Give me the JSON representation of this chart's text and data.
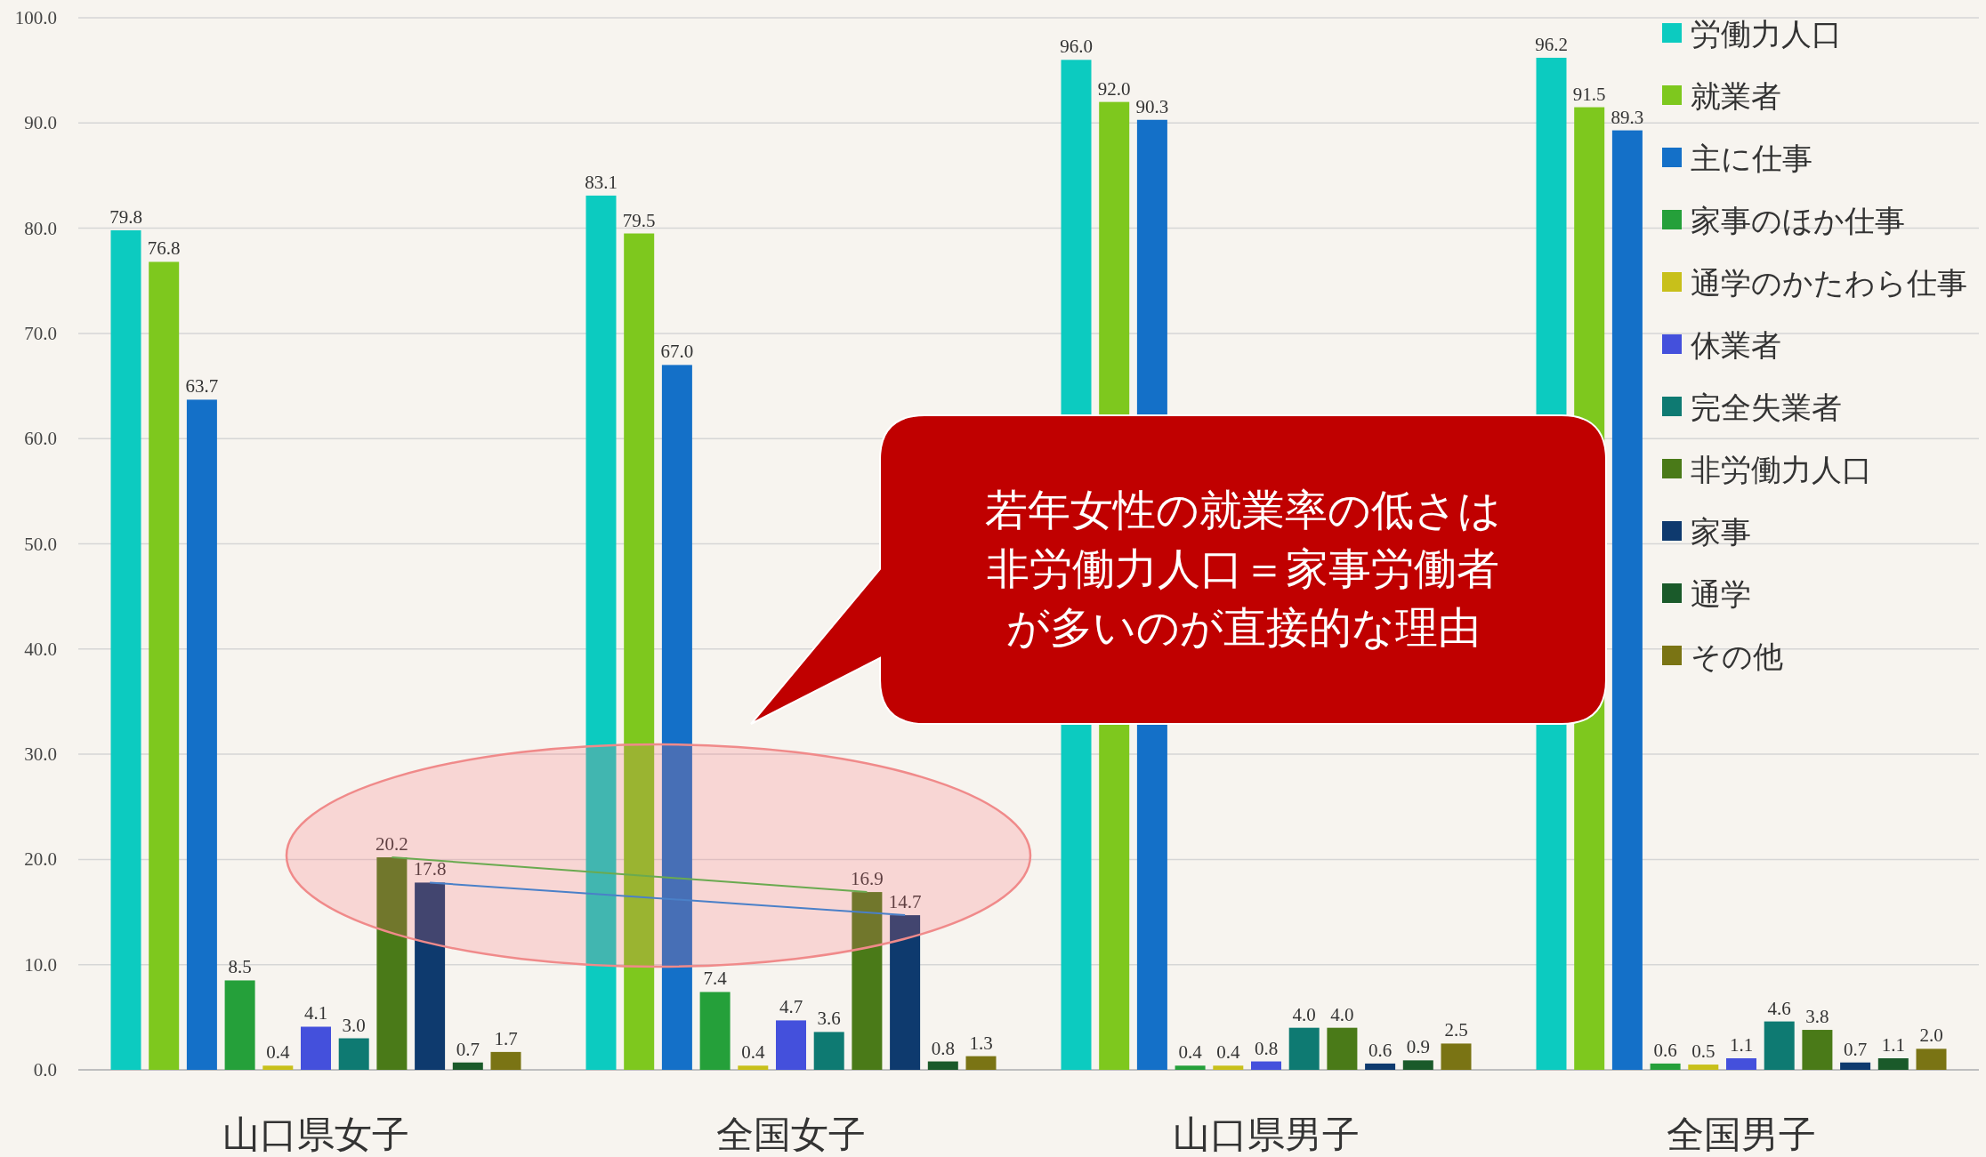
{
  "chart_data": {
    "type": "bar",
    "categories": [
      "山口県女子",
      "全国女子",
      "山口県男子",
      "全国男子"
    ],
    "series": [
      {
        "name": "労働力人口",
        "color": "#0ccbc0",
        "values": [
          79.8,
          83.1,
          96,
          96.2
        ],
        "value_labels": [
          "79.8",
          "83.1",
          "96.0",
          "96.2"
        ]
      },
      {
        "name": "就業者",
        "color": "#7ec81e",
        "values": [
          76.8,
          79.5,
          92,
          91.5
        ],
        "value_labels": [
          "76.8",
          "79.5",
          "92.0",
          "91.5"
        ]
      },
      {
        "name": "主に仕事",
        "color": "#1470c8",
        "values": [
          63.7,
          67,
          90.3,
          89.3
        ],
        "value_labels": [
          "63.7",
          "67.0",
          "90.3",
          "89.3"
        ]
      },
      {
        "name": "家事のほか仕事",
        "color": "#25a03a",
        "values": [
          8.5,
          7.4,
          0.4,
          0.6
        ],
        "value_labels": [
          "8.5",
          "7.4",
          "0.4",
          "0.6"
        ]
      },
      {
        "name": "通学のかたわら仕事",
        "color": "#c8c01a",
        "values": [
          0.4,
          0.4,
          0.4,
          0.5
        ],
        "value_labels": [
          "0.4",
          "0.4",
          "0.4",
          "0.5"
        ]
      },
      {
        "name": "休業者",
        "color": "#4450dc",
        "values": [
          4.1,
          4.7,
          0.8,
          1.1
        ],
        "value_labels": [
          "4.1",
          "4.7",
          "0.8",
          "1.1"
        ]
      },
      {
        "name": "完全失業者",
        "color": "#0e7a72",
        "values": [
          3,
          3.6,
          4,
          4.6
        ],
        "value_labels": [
          "3.0",
          "3.6",
          "4.0",
          "4.6"
        ]
      },
      {
        "name": "非労働力人口",
        "color": "#4a7a18",
        "values": [
          20.2,
          16.9,
          4,
          3.8
        ],
        "value_labels": [
          "20.2",
          "16.9",
          "4.0",
          "3.8"
        ]
      },
      {
        "name": "家事",
        "color": "#0e3a6e",
        "values": [
          17.8,
          14.7,
          0.6,
          0.7
        ],
        "value_labels": [
          "17.8",
          "14.7",
          "0.6",
          "0.7"
        ]
      },
      {
        "name": "通学",
        "color": "#1a5a2a",
        "values": [
          0.7,
          0.8,
          0.9,
          1.1
        ],
        "value_labels": [
          "0.7",
          "0.8",
          "0.9",
          "1.1"
        ]
      },
      {
        "name": "その他",
        "color": "#7a7414",
        "values": [
          1.7,
          1.3,
          2.5,
          2
        ],
        "value_labels": [
          "1.7",
          "1.3",
          "2.5",
          "2.0"
        ]
      }
    ],
    "ylim": [
      0,
      100
    ],
    "yticks": [
      {
        "value": 0,
        "label": "0.0"
      },
      {
        "value": 10,
        "label": "10.0"
      },
      {
        "value": 20,
        "label": "20.0"
      },
      {
        "value": 30,
        "label": "30.0"
      },
      {
        "value": 40,
        "label": "40.0"
      },
      {
        "value": 50,
        "label": "50.0"
      },
      {
        "value": 60,
        "label": "60.0"
      },
      {
        "value": 70,
        "label": "70.0"
      },
      {
        "value": 80,
        "label": "80.0"
      },
      {
        "value": 90,
        "label": "90.0"
      },
      {
        "value": 100,
        "label": "100.0"
      }
    ],
    "grid": "y",
    "legend": "top right",
    "annotations": [
      "若年女性の就業率の低さは",
      "非労働力人口＝家事労働者",
      "が多いのが直接的な理由"
    ]
  }
}
